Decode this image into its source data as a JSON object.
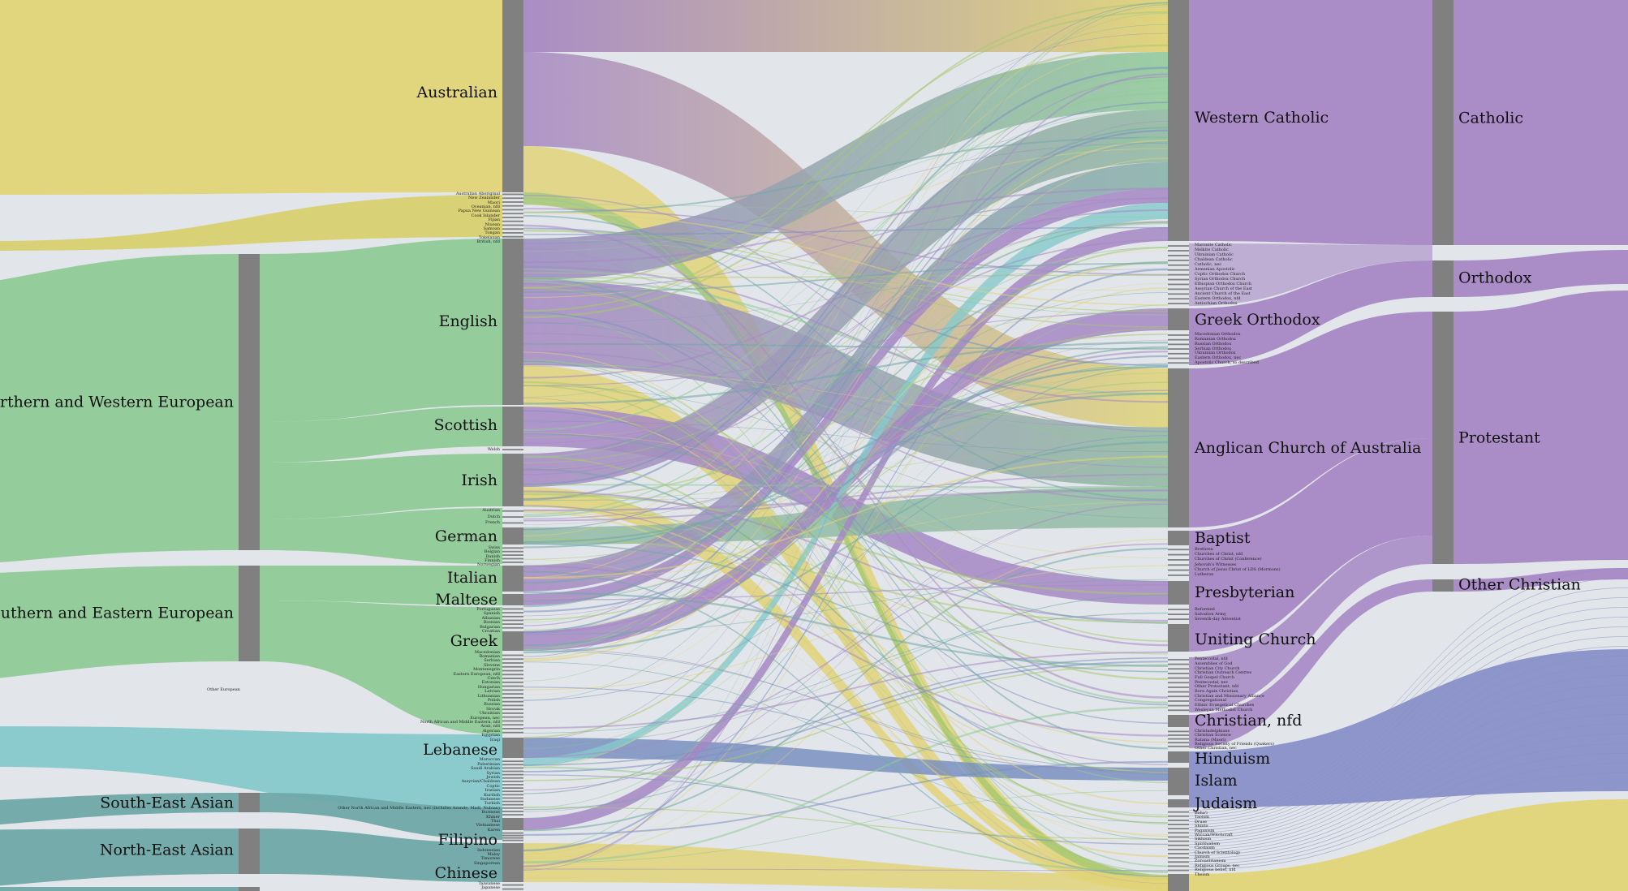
{
  "colors": {
    "background": "#e2e5e9",
    "node": "#808080",
    "oceanian": "#e0d478",
    "european": "#8fca98",
    "christian": "#a688c4",
    "middle_eastern": "#86c9cc",
    "asian": "#6fa8a8",
    "other_religion": "#8890c8"
  },
  "regions": {
    "nw_european": "Northern and Western European",
    "se_european": "Southern and Eastern European",
    "other_european": "Other European",
    "se_asian": "South-East Asian",
    "ne_asian": "North-East Asian"
  },
  "ancestry": {
    "australian": "Australian",
    "english": "English",
    "scottish": "Scottish",
    "irish": "Irish",
    "german": "German",
    "italian": "Italian",
    "maltese": "Maltese",
    "greek": "Greek",
    "lebanese": "Lebanese",
    "filipino": "Filipino",
    "chinese": "Chinese",
    "small_groups": [
      [
        "Australian Aboriginal",
        "New Zealander",
        "Maori",
        "Oceanian, nfd",
        "Papua New Guinean",
        "Cook Islander",
        "Fijian",
        "Niuean",
        "Samoan",
        "Tongan",
        "Tokelauan",
        "British, nfd"
      ],
      [
        "Welsh"
      ],
      [
        "Austrian",
        "Dutch",
        "French"
      ],
      [
        "Swiss",
        "Belgian",
        "Danish",
        "Finnish",
        "Norwegian"
      ],
      [
        "Portuguese",
        "Spanish",
        "Albanian",
        "Bosnian",
        "Bulgarian",
        "Croatian"
      ],
      [
        "Macedonian",
        "Romanian",
        "Serbian",
        "Slovene",
        "Montenegrin",
        "Eastern European, nfd",
        "Czech",
        "Estonian",
        "Hungarian",
        "Latvian",
        "Lithuanian",
        "Polish",
        "Russian",
        "Slovak",
        "Ukrainian",
        "European, nec",
        "North African and Middle Eastern, nfd",
        "Arab, nfd",
        "Algerian",
        "Egyptian",
        "Iraqi"
      ],
      [
        "Moroccan",
        "Palestinian",
        "Saudi Arabian",
        "Syrian",
        "Jewish",
        "Assyrian/Chaldean",
        "Coptic",
        "Iranian",
        "Kurdish",
        "Sudanese",
        "Turkish",
        "Other North African and Middle Eastern, nec (includes Azande, Madi, Nubian)",
        "Burmese",
        "Khmer",
        "Thai",
        "Vietnamese",
        "Karen"
      ],
      [
        "Indonesian",
        "Malay",
        "Timorese",
        "Singaporean"
      ],
      [
        "Taiwanese",
        "Japanese"
      ]
    ]
  },
  "religion": {
    "western_catholic": "Western Catholic",
    "greek_orthodox": "Greek Orthodox",
    "anglican": "Anglican Church of Australia",
    "baptist": "Baptist",
    "presbyterian": "Presbyterian",
    "uniting": "Uniting Church",
    "christian_nfd": "Christian, nfd",
    "hinduism": "Hinduism",
    "islam": "Islam",
    "judaism": "Judaism",
    "small_groups": [
      [
        "Maronite Catholic",
        "Melkite Catholic",
        "Ukrainian Catholic",
        "Chaldean Catholic",
        "Catholic, nec",
        "Armenian Apostolic",
        "Coptic Orthodox Church",
        "Syrian Orthodox Church",
        "Ethiopian Orthodox Church",
        "Assyrian Church of the East",
        "Ancient Church of the East",
        "Eastern Orthodox, nfd",
        "Antiochian Orthodox"
      ],
      [
        "Macedonian Orthodox",
        "Romanian Orthodox",
        "Russian Orthodox",
        "Serbian Orthodox",
        "Ukrainian Orthodox",
        "Eastern Orthodox, nec",
        "Apostolic Church, so described"
      ],
      [
        "Brethren",
        "Churches of Christ, nfd",
        "Churches of Christ (Conference)",
        "Jehovah's Witnesses",
        "Church of Jesus Christ of LDS (Mormons)",
        "Lutheran"
      ],
      [
        "Reformed",
        "Salvation Army",
        "Seventh-day Adventist"
      ],
      [
        "Pentecostal, nfd",
        "Assemblies of God",
        "Christian City Church",
        "Christian Outreach Centres",
        "Full Gospel Church",
        "Pentecostal, nec",
        "Other Protestant, nfd",
        "Born Again Christian",
        "Christian and Missionary Alliance",
        "Congregational",
        "Ethnic Evangelical Churches",
        "Wesleyan Methodist Church"
      ],
      [
        "Christadelphians",
        "Christian Science",
        "Ratana (Maori)",
        "Religious Society of Friends (Quakers)",
        "Other Christian, nec"
      ],
      [
        "Baha'i",
        "Taoism",
        "Druse",
        "Shinto",
        "Paganism",
        "Wiccan/Witchcraft",
        "Sikhism",
        "Spiritualism",
        "Caodaism",
        "Church of Scientology",
        "Jainism",
        "Zoroastrianism",
        "Religious Groups, nec",
        "Religious belief, nfd",
        "Theism"
      ]
    ]
  },
  "religion_group": {
    "catholic": "Catholic",
    "orthodox": "Orthodox",
    "protestant": "Protestant",
    "other_christian": "Other Christian"
  }
}
